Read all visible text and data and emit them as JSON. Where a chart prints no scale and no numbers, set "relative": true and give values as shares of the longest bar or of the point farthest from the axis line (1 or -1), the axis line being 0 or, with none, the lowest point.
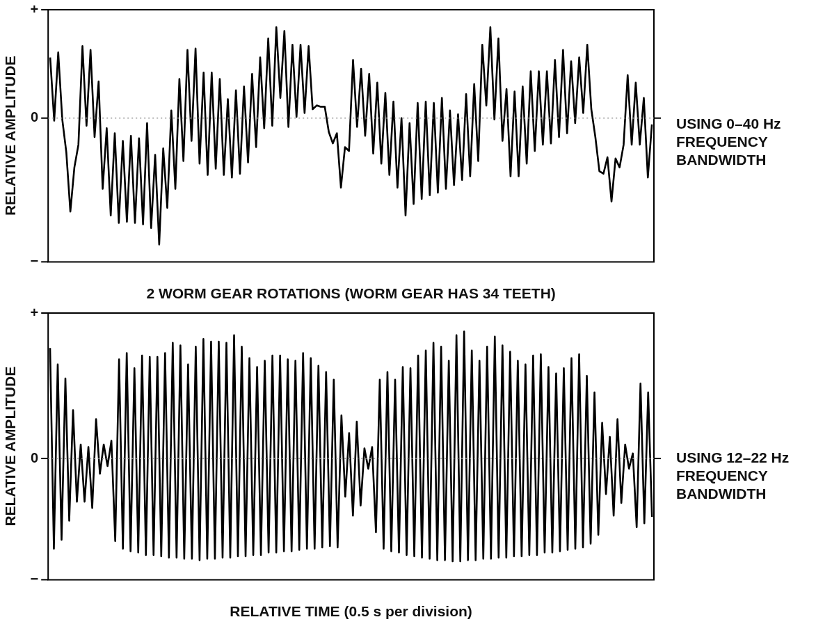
{
  "chart_data": [
    {
      "type": "line",
      "relative": true,
      "xlabel": "2 WORM GEAR ROTATIONS (WORM GEAR HAS 34 TEETH)",
      "ylabel": "RELATIVE AMPLITUDE",
      "annotations": [
        "USING 0–40 Hz FREQUENCY BANDWIDTH",
        "+",
        "−"
      ],
      "ref_lines": [
        {
          "axis": "y",
          "value": 0,
          "label": "0",
          "color": "#999999",
          "line_style": "dotted"
        }
      ],
      "marker": "none",
      "line_style": "solid",
      "categories": [
        null,
        null,
        null,
        null,
        null,
        null,
        null,
        null,
        null,
        null,
        null,
        null,
        null,
        null,
        null,
        null,
        null,
        null,
        null,
        null,
        null,
        null,
        null,
        null,
        null,
        null,
        null,
        null,
        null,
        null,
        null,
        null,
        null,
        null,
        null,
        null,
        null,
        null,
        null,
        null,
        null,
        null,
        null,
        null,
        null,
        null,
        null,
        null,
        null,
        null,
        null,
        null,
        null,
        null,
        null,
        null,
        null,
        null,
        null,
        null,
        null,
        null,
        null,
        null,
        null,
        null,
        null,
        null,
        null,
        null,
        null,
        null,
        null,
        null,
        null,
        null,
        null,
        null,
        null,
        null,
        null,
        null,
        null,
        null,
        null,
        null,
        null,
        null,
        null,
        null,
        null,
        null,
        null,
        null,
        null,
        null,
        null,
        null,
        null,
        null,
        null,
        null,
        null,
        null,
        null,
        null,
        null,
        null,
        null,
        null,
        null,
        null,
        null,
        null,
        null,
        null,
        null,
        null,
        null,
        null,
        null,
        null,
        null,
        null,
        null,
        null,
        null,
        null,
        null,
        null,
        null,
        null,
        null,
        null,
        null,
        null,
        null,
        null,
        null,
        null,
        null,
        null,
        null,
        null,
        null,
        null,
        null,
        null,
        null,
        null
      ],
      "series": [
        {
          "color": "#000000",
          "values": [
            0.48,
            -0.02,
            0.52,
            -0.01,
            -0.27,
            -0.74,
            -0.39,
            -0.21,
            0.57,
            -0.06,
            0.54,
            -0.15,
            0.29,
            -0.56,
            -0.08,
            -0.77,
            -0.12,
            -0.83,
            -0.18,
            -0.82,
            -0.14,
            -0.83,
            -0.16,
            -0.84,
            -0.04,
            -0.87,
            -0.29,
            -1,
            -0.24,
            -0.71,
            0.06,
            -0.56,
            0.31,
            -0.34,
            0.54,
            -0.18,
            0.55,
            -0.36,
            0.36,
            -0.45,
            0.36,
            -0.4,
            0.31,
            -0.45,
            0.15,
            -0.47,
            0.22,
            -0.44,
            0.25,
            -0.35,
            0.35,
            -0.23,
            0.48,
            -0.08,
            0.63,
            -0.06,
            0.72,
            0.16,
            0.69,
            -0.07,
            0.58,
            0.01,
            0.58,
            0.04,
            0.57,
            0.07,
            0.1,
            0.09,
            0.09,
            -0.11,
            -0.2,
            -0.12,
            -0.55,
            -0.23,
            -0.26,
            0.46,
            -0.07,
            0.39,
            -0.14,
            0.35,
            -0.28,
            0.28,
            -0.36,
            0.2,
            -0.45,
            0.13,
            -0.55,
            0,
            -0.77,
            -0.04,
            -0.68,
            0.12,
            -0.64,
            0.13,
            -0.61,
            0.12,
            -0.59,
            0.16,
            -0.56,
            0.06,
            -0.53,
            0.03,
            -0.49,
            0.19,
            -0.46,
            0.27,
            -0.34,
            0.58,
            0.1,
            0.72,
            -0.01,
            0.63,
            -0.18,
            0.23,
            -0.46,
            0.21,
            -0.46,
            0.25,
            -0.36,
            0.37,
            -0.26,
            0.37,
            -0.21,
            0.37,
            -0.2,
            0.46,
            -0.15,
            0.54,
            -0.12,
            0.45,
            -0.04,
            0.48,
            0.04,
            0.58,
            0.07,
            -0.15,
            -0.42,
            -0.44,
            -0.31,
            -0.66,
            -0.32,
            -0.39,
            -0.21,
            0.34,
            -0.21,
            0.28,
            -0.21,
            0.16,
            -0.47,
            -0.05
          ]
        }
      ]
    },
    {
      "type": "line",
      "relative": true,
      "xlabel": "RELATIVE TIME (0.5 s per division)",
      "ylabel": "RELATIVE AMPLITUDE",
      "annotations": [
        "USING 12–22 Hz FREQUENCY BANDWIDTH",
        "+",
        "−"
      ],
      "ref_lines": [
        {
          "axis": "y",
          "value": 0,
          "label": "0",
          "color": "#999999",
          "line_style": "dotted"
        }
      ],
      "marker": "none",
      "line_style": "solid",
      "categories": [
        null,
        null,
        null,
        null,
        null,
        null,
        null,
        null,
        null,
        null,
        null,
        null,
        null,
        null,
        null,
        null,
        null,
        null,
        null,
        null,
        null,
        null,
        null,
        null,
        null,
        null,
        null,
        null,
        null,
        null,
        null,
        null,
        null,
        null,
        null,
        null,
        null,
        null,
        null,
        null,
        null,
        null,
        null,
        null,
        null,
        null,
        null,
        null,
        null,
        null,
        null,
        null,
        null,
        null,
        null,
        null,
        null,
        null,
        null,
        null,
        null,
        null,
        null,
        null,
        null,
        null,
        null,
        null,
        null,
        null,
        null,
        null,
        null,
        null,
        null,
        null,
        null,
        null,
        null,
        null,
        null,
        null,
        null,
        null,
        null,
        null,
        null,
        null,
        null,
        null,
        null,
        null,
        null,
        null,
        null,
        null,
        null,
        null,
        null,
        null,
        null,
        null,
        null,
        null,
        null,
        null,
        null,
        null,
        null,
        null,
        null,
        null,
        null,
        null,
        null,
        null,
        null,
        null,
        null,
        null,
        null,
        null,
        null,
        null,
        null,
        null,
        null,
        null,
        null,
        null,
        null,
        null,
        null,
        null,
        null,
        null,
        null,
        null,
        null,
        null,
        null,
        null,
        null,
        null,
        null,
        null,
        null,
        null,
        null,
        null,
        null,
        null,
        null,
        null,
        null,
        null,
        null,
        null
      ],
      "series": [
        {
          "color": "#000000",
          "values": [
            0.87,
            -0.71,
            0.74,
            -0.64,
            0.63,
            -0.49,
            0.38,
            -0.34,
            0.11,
            -0.34,
            0.09,
            -0.39,
            0.31,
            -0.12,
            0.11,
            -0.06,
            0.14,
            -0.65,
            0.78,
            -0.71,
            0.83,
            -0.73,
            0.71,
            -0.74,
            0.81,
            -0.76,
            0.8,
            -0.76,
            0.8,
            -0.77,
            0.83,
            -0.78,
            0.91,
            -0.78,
            0.89,
            -0.79,
            0.74,
            -0.79,
            0.88,
            -0.8,
            0.94,
            -0.79,
            0.92,
            -0.79,
            0.92,
            -0.78,
            0.91,
            -0.78,
            0.97,
            -0.77,
            0.88,
            -0.77,
            0.79,
            -0.76,
            0.72,
            -0.76,
            0.77,
            -0.74,
            0.81,
            -0.74,
            0.81,
            -0.73,
            0.78,
            -0.73,
            0.77,
            -0.72,
            0.83,
            -0.71,
            0.79,
            -0.71,
            0.73,
            -0.7,
            0.68,
            -0.69,
            0.62,
            -0.7,
            0.34,
            -0.3,
            0.2,
            -0.45,
            0.29,
            -0.37,
            0.08,
            -0.08,
            0.09,
            -0.58,
            0.62,
            -0.71,
            0.68,
            -0.73,
            0.62,
            -0.74,
            0.72,
            -0.76,
            0.71,
            -0.77,
            0.81,
            -0.78,
            0.85,
            -0.79,
            0.91,
            -0.8,
            0.88,
            -0.8,
            0.77,
            -0.81,
            0.97,
            -0.81,
            1,
            -0.8,
            0.85,
            -0.8,
            0.77,
            -0.79,
            0.88,
            -0.79,
            0.96,
            -0.78,
            0.89,
            -0.78,
            0.84,
            -0.77,
            0.77,
            -0.77,
            0.74,
            -0.76,
            0.81,
            -0.76,
            0.82,
            -0.74,
            0.72,
            -0.74,
            0.67,
            -0.73,
            0.71,
            -0.72,
            0.79,
            -0.71,
            0.82,
            -0.7,
            0.65,
            -0.67,
            0.52,
            -0.6,
            0.28,
            -0.28,
            0.17,
            -0.45,
            0.31,
            -0.35,
            0.11,
            -0.08,
            0.04,
            -0.54,
            0.59,
            -0.51,
            0.52,
            -0.46
          ]
        }
      ]
    }
  ]
}
